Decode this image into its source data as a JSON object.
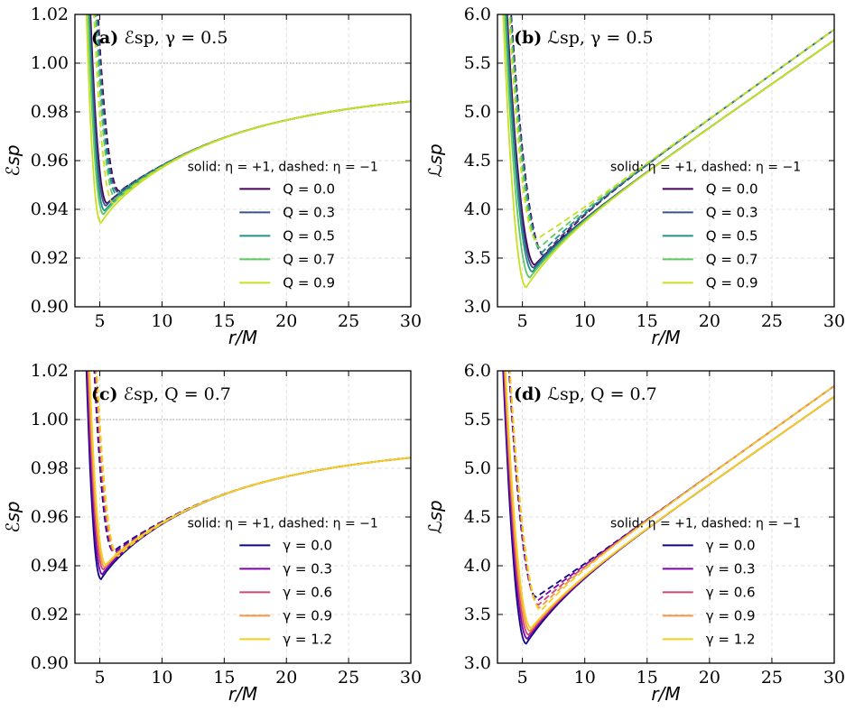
{
  "chart_data": [
    {
      "id": "a",
      "type": "line",
      "title_bold": "(a)",
      "title_rest": "ℰsp, γ = 0.5",
      "xlabel": "r/M",
      "ylabel": "ℰsp",
      "xlim": [
        3,
        30
      ],
      "ylim": [
        0.9,
        1.02
      ],
      "xticks": [
        5,
        10,
        15,
        20,
        25,
        30
      ],
      "yticks": [
        0.9,
        0.92,
        0.94,
        0.96,
        0.98,
        1.0,
        1.02
      ],
      "xtick_labels": [
        "5",
        "10",
        "15",
        "20",
        "25",
        "30"
      ],
      "ytick_labels": [
        "0.90",
        "0.92",
        "0.94",
        "0.96",
        "0.98",
        "1.00",
        "1.02"
      ],
      "reference_line": 1.0,
      "legend_header": "solid: η = +1, dashed: η = −1",
      "legend_position": "center-right",
      "series": [
        {
          "name": "Q = 0.0",
          "color": "#440154",
          "min_r": 5.6,
          "min_solid": 0.9425,
          "min_dashed": 0.9475
        },
        {
          "name": "Q = 0.3",
          "color": "#3b528b",
          "min_r": 5.5,
          "min_solid": 0.9415,
          "min_dashed": 0.947
        },
        {
          "name": "Q = 0.5",
          "color": "#21918c",
          "min_r": 5.4,
          "min_solid": 0.9395,
          "min_dashed": 0.946
        },
        {
          "name": "Q = 0.7",
          "color": "#5ec962",
          "min_r": 5.3,
          "min_solid": 0.938,
          "min_dashed": 0.9445
        },
        {
          "name": "Q = 0.9",
          "color": "#c8e020",
          "min_r": 5.1,
          "min_solid": 0.9345,
          "min_dashed": 0.9425
        }
      ],
      "quantity": "E"
    },
    {
      "id": "b",
      "type": "line",
      "title_bold": "(b)",
      "title_rest": "ℒsp, γ = 0.5",
      "xlabel": "r/M",
      "ylabel": "ℒsp",
      "xlim": [
        3,
        30
      ],
      "ylim": [
        3.0,
        6.0
      ],
      "xticks": [
        5,
        10,
        15,
        20,
        25,
        30
      ],
      "yticks": [
        3.0,
        3.5,
        4.0,
        4.5,
        5.0,
        5.5,
        6.0
      ],
      "xtick_labels": [
        "5",
        "10",
        "15",
        "20",
        "25",
        "30"
      ],
      "ytick_labels": [
        "3.0",
        "3.5",
        "4.0",
        "4.5",
        "5.0",
        "5.5",
        "6.0"
      ],
      "reference_line": null,
      "legend_header": "solid: η = +1, dashed: η = −1",
      "legend_position": "center-right",
      "series": [
        {
          "name": "Q = 0.0",
          "color": "#440154",
          "min_r": 6.0,
          "min_solid": 3.43,
          "min_dashed": 3.52
        },
        {
          "name": "Q = 0.3",
          "color": "#3b528b",
          "min_r": 5.9,
          "min_solid": 3.4,
          "min_dashed": 3.53
        },
        {
          "name": "Q = 0.5",
          "color": "#21918c",
          "min_r": 5.8,
          "min_solid": 3.36,
          "min_dashed": 3.56
        },
        {
          "name": "Q = 0.7",
          "color": "#5ec962",
          "min_r": 5.6,
          "min_solid": 3.3,
          "min_dashed": 3.61
        },
        {
          "name": "Q = 0.9",
          "color": "#c8e020",
          "min_r": 5.3,
          "min_solid": 3.2,
          "min_dashed": 3.69
        }
      ],
      "quantity": "L"
    },
    {
      "id": "c",
      "type": "line",
      "title_bold": "(c)",
      "title_rest": "ℰsp, Q = 0.7",
      "xlabel": "r/M",
      "ylabel": "ℰsp",
      "xlim": [
        3,
        30
      ],
      "ylim": [
        0.9,
        1.02
      ],
      "xticks": [
        5,
        10,
        15,
        20,
        25,
        30
      ],
      "yticks": [
        0.9,
        0.92,
        0.94,
        0.96,
        0.98,
        1.0,
        1.02
      ],
      "xtick_labels": [
        "5",
        "10",
        "15",
        "20",
        "25",
        "30"
      ],
      "ytick_labels": [
        "0.90",
        "0.92",
        "0.94",
        "0.96",
        "0.98",
        "1.00",
        "1.02"
      ],
      "reference_line": 1.0,
      "legend_header": "solid: η = +1, dashed: η = −1",
      "legend_position": "center-right",
      "series": [
        {
          "name": "γ = 0.0",
          "color": "#0d0887",
          "min_r": 5.1,
          "min_solid": 0.9345,
          "min_dashed": 0.946
        },
        {
          "name": "γ = 0.3",
          "color": "#7e03a8",
          "min_r": 5.2,
          "min_solid": 0.9365,
          "min_dashed": 0.9455
        },
        {
          "name": "γ = 0.6",
          "color": "#cc4778",
          "min_r": 5.3,
          "min_solid": 0.9385,
          "min_dashed": 0.945
        },
        {
          "name": "γ = 0.9",
          "color": "#f89540",
          "min_r": 5.4,
          "min_solid": 0.9395,
          "min_dashed": 0.9445
        },
        {
          "name": "γ = 1.2",
          "color": "#f0d020",
          "min_r": 5.5,
          "min_solid": 0.9405,
          "min_dashed": 0.944
        }
      ],
      "quantity": "E"
    },
    {
      "id": "d",
      "type": "line",
      "title_bold": "(d)",
      "title_rest": "ℒsp, Q = 0.7",
      "xlabel": "r/M",
      "ylabel": "ℒsp",
      "xlim": [
        3,
        30
      ],
      "ylim": [
        3.0,
        6.0
      ],
      "xticks": [
        5,
        10,
        15,
        20,
        25,
        30
      ],
      "yticks": [
        3.0,
        3.5,
        4.0,
        4.5,
        5.0,
        5.5,
        6.0
      ],
      "xtick_labels": [
        "5",
        "10",
        "15",
        "20",
        "25",
        "30"
      ],
      "ytick_labels": [
        "3.0",
        "3.5",
        "4.0",
        "4.5",
        "5.0",
        "5.5",
        "6.0"
      ],
      "reference_line": null,
      "legend_header": "solid: η = +1, dashed: η = −1",
      "legend_position": "center-right",
      "series": [
        {
          "name": "γ = 0.0",
          "color": "#0d0887",
          "min_r": 5.3,
          "min_solid": 3.2,
          "min_dashed": 3.68
        },
        {
          "name": "γ = 0.3",
          "color": "#7e03a8",
          "min_r": 5.4,
          "min_solid": 3.25,
          "min_dashed": 3.64
        },
        {
          "name": "γ = 0.6",
          "color": "#cc4778",
          "min_r": 5.5,
          "min_solid": 3.29,
          "min_dashed": 3.6
        },
        {
          "name": "γ = 0.9",
          "color": "#f89540",
          "min_r": 5.6,
          "min_solid": 3.33,
          "min_dashed": 3.57
        },
        {
          "name": "γ = 1.2",
          "color": "#f0d020",
          "min_r": 5.7,
          "min_solid": 3.36,
          "min_dashed": 3.54
        }
      ],
      "quantity": "L"
    }
  ]
}
